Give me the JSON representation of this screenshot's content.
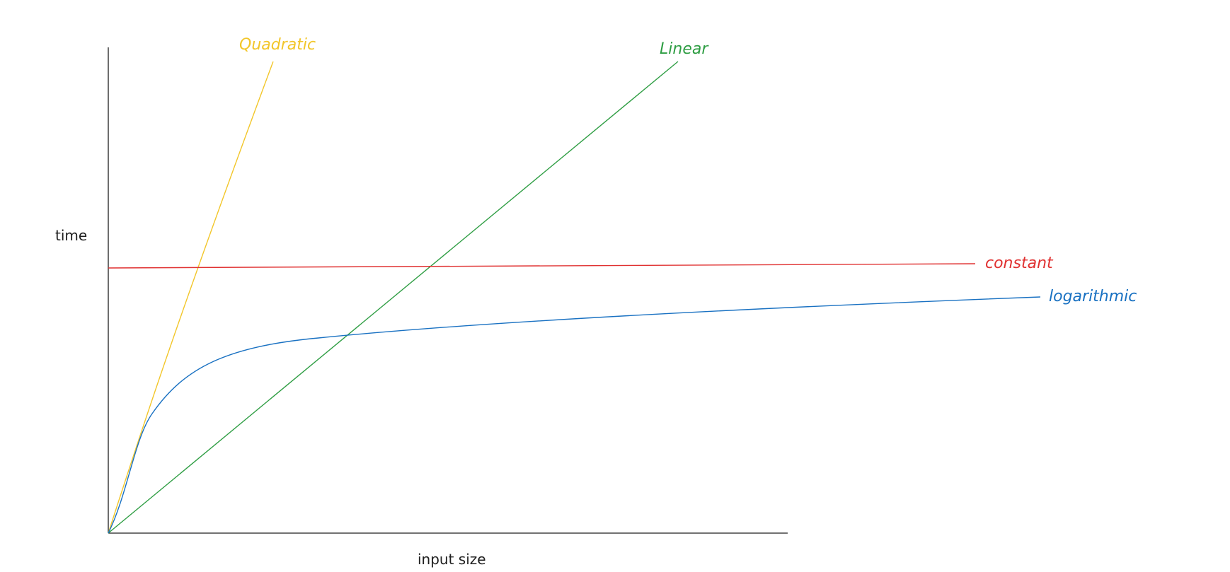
{
  "diagram": {
    "y_axis_label": "time",
    "x_axis_label": "input size",
    "curves": [
      {
        "id": "quadratic",
        "label": "Quadratic",
        "color": "#f2c62a"
      },
      {
        "id": "linear",
        "label": "Linear",
        "color": "#2f9e44"
      },
      {
        "id": "constant",
        "label": "constant",
        "color": "#e03131"
      },
      {
        "id": "logarithmic",
        "label": "logarithmic",
        "color": "#1971c2"
      }
    ]
  }
}
